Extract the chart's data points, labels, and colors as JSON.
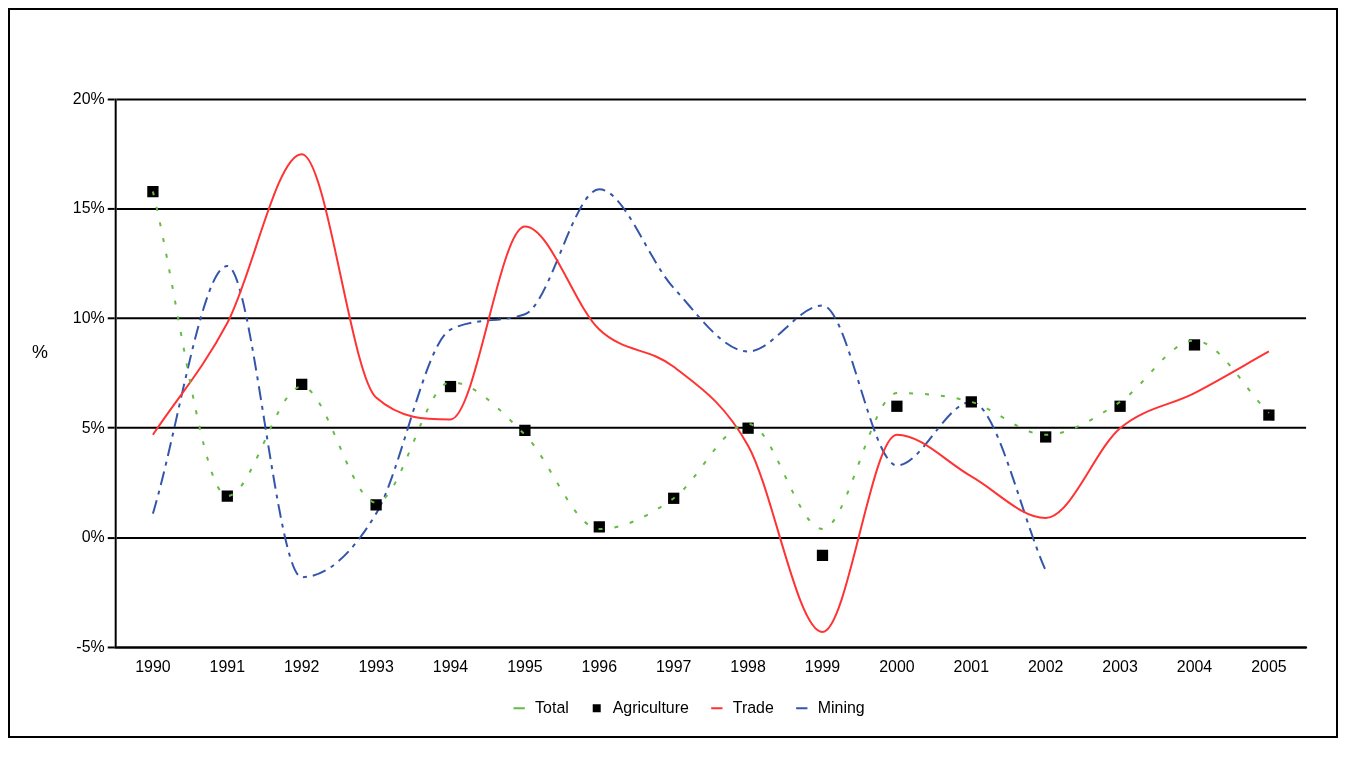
{
  "chart_data": {
    "type": "line",
    "ylabel": "%",
    "categories": [
      "1990",
      "1991",
      "1992",
      "1993",
      "1994",
      "1995",
      "1996",
      "1997",
      "1998",
      "1999",
      "2000",
      "2001",
      "2002",
      "2003",
      "2004",
      "2005"
    ],
    "series": [
      {
        "name": "Total",
        "color": "#66bb44",
        "line_style": "dotted",
        "marker": "none",
        "values": [
          15.8,
          1.9,
          6.9,
          1.6,
          7.1,
          4.7,
          0.4,
          1.8,
          5.2,
          0.4,
          6.6,
          6.2,
          4.7,
          6.2,
          9.0,
          5.7
        ]
      },
      {
        "name": "Agriculture",
        "type": "scatter",
        "color": "#000000",
        "marker": "square",
        "values": [
          15.8,
          1.9,
          7.0,
          1.5,
          6.9,
          4.9,
          0.5,
          1.8,
          5.0,
          -0.8,
          6.0,
          6.2,
          4.6,
          6.0,
          8.8,
          5.6
        ]
      },
      {
        "name": "Trade",
        "color": "#ff3333",
        "line_style": "solid",
        "marker": "none",
        "values": [
          4.7,
          9.8,
          17.5,
          6.4,
          5.4,
          14.2,
          9.5,
          7.8,
          4.2,
          -4.3,
          4.7,
          2.8,
          0.9,
          5.0,
          6.6,
          8.5
        ]
      },
      {
        "name": "Mining",
        "color": "#3355aa",
        "line_style": "dashed",
        "marker": "none",
        "values": [
          1.1,
          12.4,
          -1.8,
          1.1,
          9.5,
          10.2,
          15.9,
          11.4,
          8.5,
          10.6,
          3.3,
          6.2,
          -1.5,
          null,
          null,
          null
        ]
      }
    ],
    "ylim": [
      -5,
      20
    ],
    "yticks": [
      {
        "value": -5,
        "label": "-5%"
      },
      {
        "value": 0,
        "label": "0%"
      },
      {
        "value": 5,
        "label": "5%"
      },
      {
        "value": 10,
        "label": "10%"
      },
      {
        "value": 15,
        "label": "15%"
      },
      {
        "value": 20,
        "label": "20%"
      }
    ],
    "grid": "y",
    "legend": "bottom"
  }
}
